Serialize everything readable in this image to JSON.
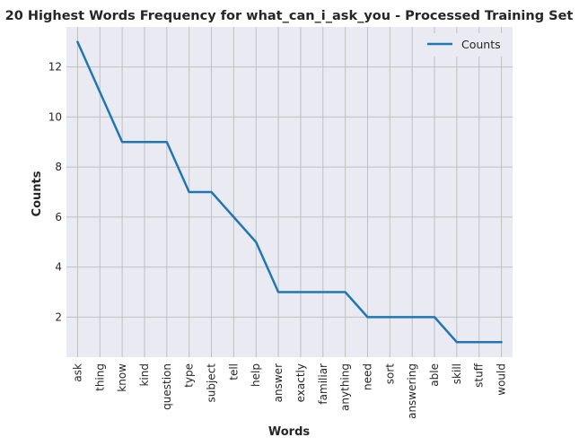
{
  "chart_data": {
    "type": "line",
    "title": "20 Highest Words Frequency for what_can_i_ask_you - Processed Training Set",
    "xlabel": "Words",
    "ylabel": "Counts",
    "categories": [
      "ask",
      "thing",
      "know",
      "kind",
      "question",
      "type",
      "subject",
      "tell",
      "help",
      "answer",
      "exactly",
      "familiar",
      "anything",
      "need",
      "sort",
      "answering",
      "able",
      "skill",
      "stuff",
      "would"
    ],
    "series": [
      {
        "name": "Counts",
        "values": [
          13,
          11,
          9,
          9,
          9,
          7,
          7,
          6,
          5,
          3,
          3,
          3,
          3,
          2,
          2,
          2,
          2,
          1,
          1,
          1
        ]
      }
    ],
    "ylim": [
      0.4,
      13.6
    ],
    "yticks": [
      2,
      4,
      6,
      8,
      10,
      12
    ],
    "grid": true,
    "legend": "top-right",
    "colors": {
      "line": "#1f77b4",
      "background": "#eaeaf2",
      "grid": "#c0c0c0",
      "text": "#262626"
    }
  }
}
